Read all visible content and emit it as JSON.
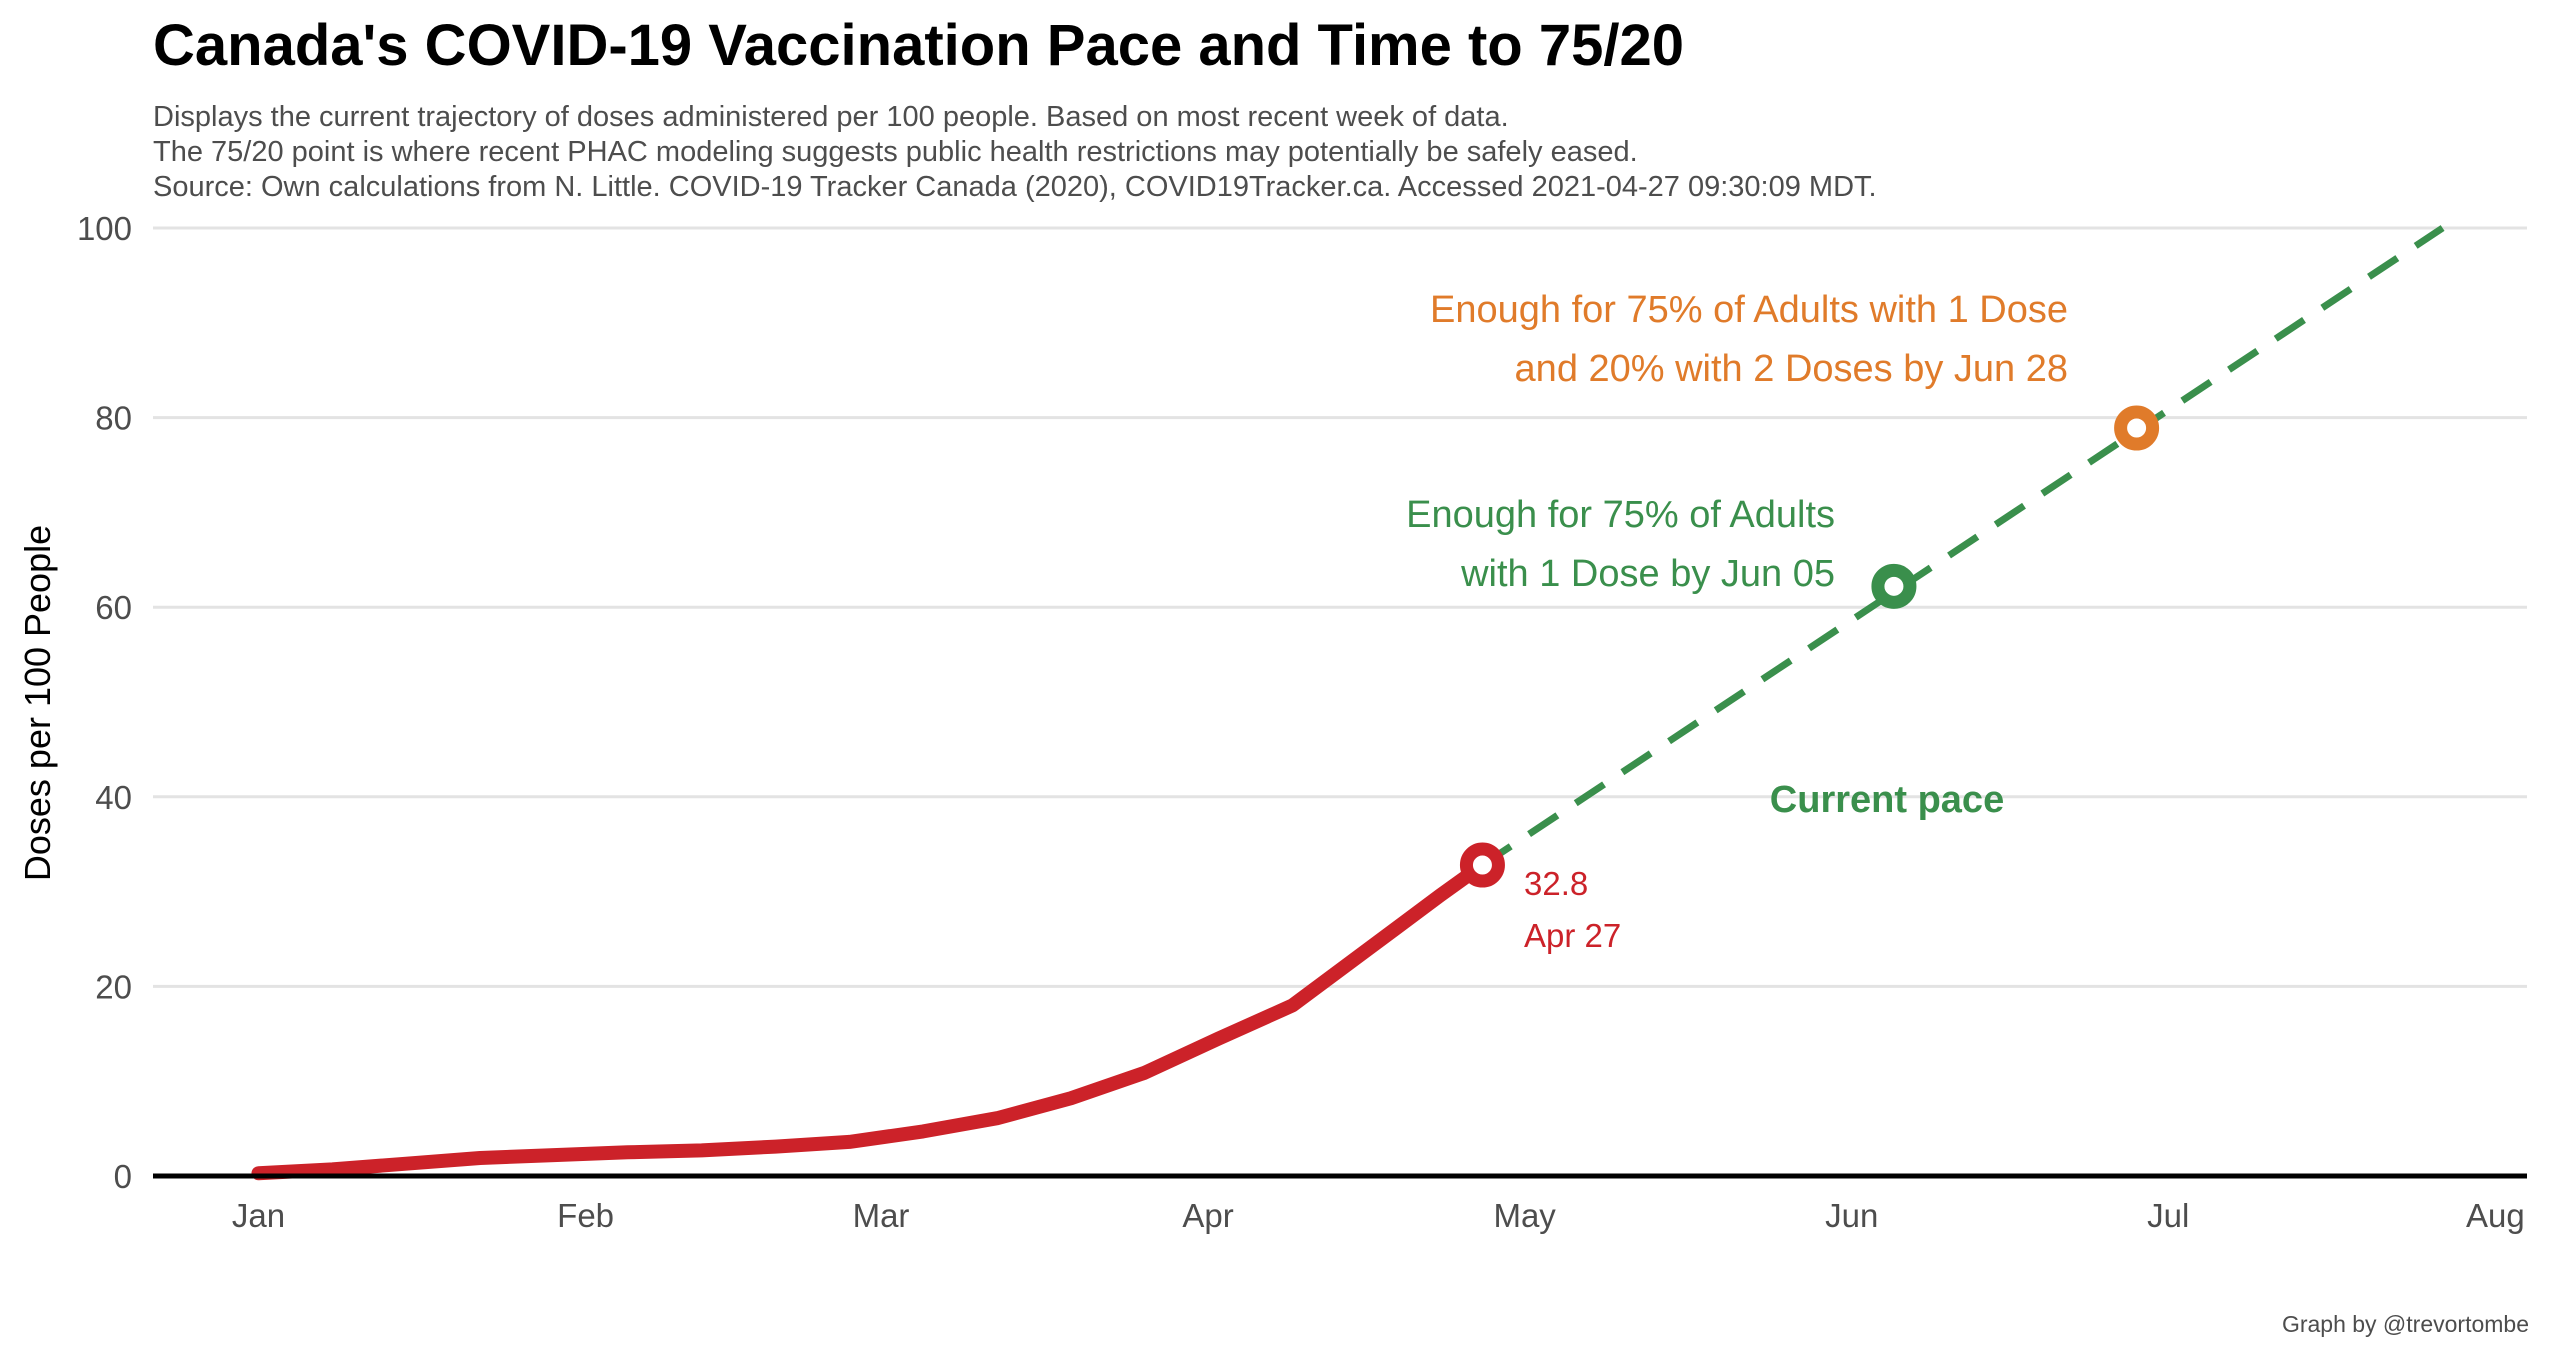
{
  "title": "Canada's COVID-19 Vaccination Pace and Time to 75/20",
  "subtitle_lines": [
    "Displays the current trajectory of doses administered per 100 people. Based on most recent week of data.",
    "The 75/20 point is where recent PHAC modeling suggests public health restrictions may potentially be safely eased.",
    "Source: Own calculations from N. Little. COVID-19 Tracker Canada (2020), COVID19Tracker.ca. Accessed 2021-04-27 09:30:09 MDT."
  ],
  "caption": "Graph by @trevortombe",
  "colors": {
    "actual": "#cc2229",
    "projection": "#3a8f4c",
    "target_75_20": "#e07b2a",
    "grid": "#e3e3e3",
    "axis": "#000000"
  },
  "chart_data": {
    "type": "line",
    "xlabel": "",
    "ylabel": "Doses per 100 People",
    "ylim": [
      0,
      100
    ],
    "yticks": [
      0,
      20,
      40,
      60,
      80,
      100
    ],
    "x_axis_type": "date",
    "xlim": [
      "2020-12-22",
      "2021-08-04"
    ],
    "xticks": [
      {
        "date": "2021-01-01",
        "label": "Jan"
      },
      {
        "date": "2021-02-01",
        "label": "Feb"
      },
      {
        "date": "2021-03-01",
        "label": "Mar"
      },
      {
        "date": "2021-04-01",
        "label": "Apr"
      },
      {
        "date": "2021-05-01",
        "label": "May"
      },
      {
        "date": "2021-06-01",
        "label": "Jun"
      },
      {
        "date": "2021-07-01",
        "label": "Jul"
      },
      {
        "date": "2021-08-01",
        "label": "Aug"
      }
    ],
    "grid": "horizontal",
    "series": [
      {
        "style": "solid",
        "color": "#cc2229",
        "x": [
          "2021-01-01",
          "2021-01-08",
          "2021-01-15",
          "2021-01-22",
          "2021-01-29",
          "2021-02-05",
          "2021-02-12",
          "2021-02-19",
          "2021-02-26",
          "2021-03-05",
          "2021-03-12",
          "2021-03-19",
          "2021-03-26",
          "2021-04-02",
          "2021-04-09",
          "2021-04-16",
          "2021-04-23",
          "2021-04-27"
        ],
        "y": [
          0.3,
          0.7,
          1.3,
          1.9,
          2.2,
          2.5,
          2.7,
          3.1,
          3.6,
          4.7,
          6.1,
          8.2,
          10.9,
          14.5,
          18.0,
          23.8,
          29.6,
          32.8
        ]
      },
      {
        "style": "dashed",
        "color": "#3a8f4c",
        "x": [
          "2021-04-27",
          "2021-07-27"
        ],
        "y": [
          32.8,
          100
        ]
      }
    ],
    "points": [
      {
        "date": "2021-04-27",
        "y": 32.8,
        "color": "#cc2229"
      },
      {
        "date": "2021-06-05",
        "y": 62.2,
        "color": "#3a8f4c"
      },
      {
        "date": "2021-06-28",
        "y": 78.9,
        "color": "#e07b2a"
      }
    ],
    "annotations": {
      "last_value": "32.8",
      "last_date": "Apr 27",
      "first_dose": [
        "Enough for 75% of Adults",
        "with 1 Dose by Jun 05"
      ],
      "target_75_20": [
        "Enough for 75% of Adults with 1 Dose",
        "and 20% with 2 Doses by Jun 28"
      ],
      "pace_label": "Current pace"
    }
  }
}
